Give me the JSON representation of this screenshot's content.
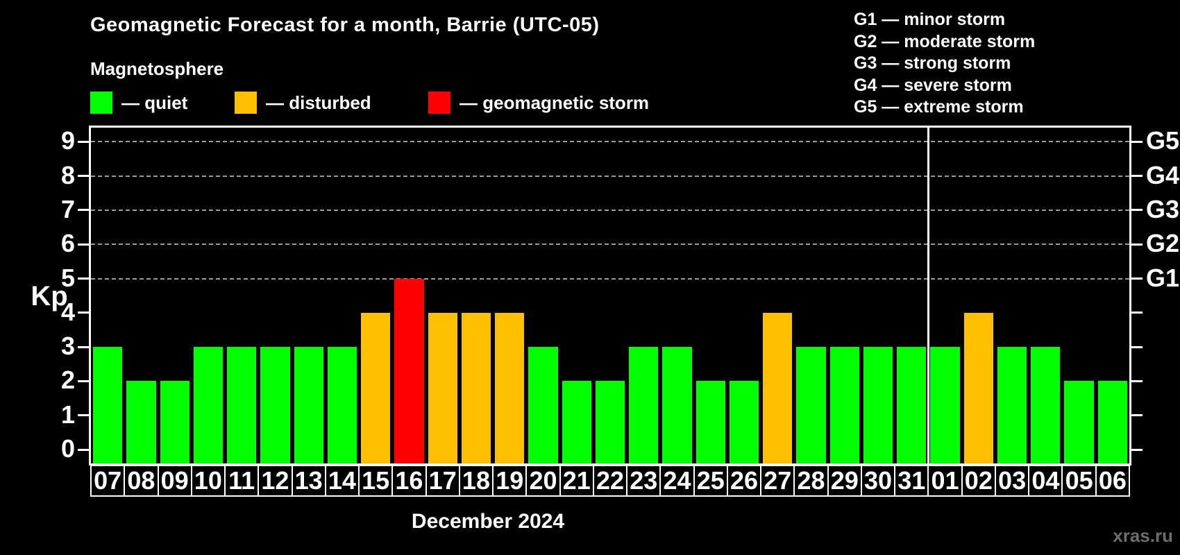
{
  "title": "Geomagnetic Forecast for a month, Barrie (UTC-05)",
  "subtitle": "Magnetosphere",
  "legend": {
    "items": [
      {
        "status": "quiet",
        "label": "— quiet",
        "color": "#00ff00"
      },
      {
        "status": "disturbed",
        "label": "— disturbed",
        "color": "#ffc000"
      },
      {
        "status": "storm",
        "label": "— geomagnetic storm",
        "color": "#ff0000"
      }
    ]
  },
  "g_scale_legend": [
    "G1 — minor storm",
    "G2 — moderate storm",
    "G3 — strong storm",
    "G4 — severe storm",
    "G5 — extreme storm"
  ],
  "watermark": "xras.ru",
  "chart_data": {
    "type": "bar",
    "title": "Geomagnetic Forecast for a month, Barrie (UTC-05)",
    "xlabel": "December 2024",
    "ylabel": "Kp",
    "ylim": [
      0,
      9
    ],
    "yticks": [
      0,
      1,
      2,
      3,
      4,
      5,
      6,
      7,
      8,
      9
    ],
    "grid": "dashed horizontal lines at Kp 5-9 only",
    "legend_position": "top",
    "categories": [
      "07",
      "08",
      "09",
      "10",
      "11",
      "12",
      "13",
      "14",
      "15",
      "16",
      "17",
      "18",
      "19",
      "20",
      "21",
      "22",
      "23",
      "24",
      "25",
      "26",
      "27",
      "28",
      "29",
      "30",
      "31",
      "01",
      "02",
      "03",
      "04",
      "05",
      "06"
    ],
    "values": [
      3,
      2,
      2,
      3,
      3,
      3,
      3,
      3,
      4,
      5,
      4,
      4,
      4,
      3,
      2,
      2,
      3,
      3,
      2,
      2,
      4,
      3,
      3,
      3,
      3,
      3,
      4,
      3,
      3,
      2,
      2
    ],
    "statuses": [
      "quiet",
      "quiet",
      "quiet",
      "quiet",
      "quiet",
      "quiet",
      "quiet",
      "quiet",
      "disturbed",
      "storm",
      "disturbed",
      "disturbed",
      "disturbed",
      "quiet",
      "quiet",
      "quiet",
      "quiet",
      "quiet",
      "quiet",
      "quiet",
      "disturbed",
      "quiet",
      "quiet",
      "quiet",
      "quiet",
      "quiet",
      "disturbed",
      "quiet",
      "quiet",
      "quiet",
      "quiet"
    ],
    "colors": {
      "quiet": "#00ff00",
      "disturbed": "#ffc000",
      "storm": "#ff0000"
    },
    "right_axis_labels": [
      {
        "kp": 5,
        "label": "G1"
      },
      {
        "kp": 6,
        "label": "G2"
      },
      {
        "kp": 7,
        "label": "G3"
      },
      {
        "kp": 8,
        "label": "G4"
      },
      {
        "kp": 9,
        "label": "G5"
      }
    ],
    "month_boundary_before": "01"
  }
}
